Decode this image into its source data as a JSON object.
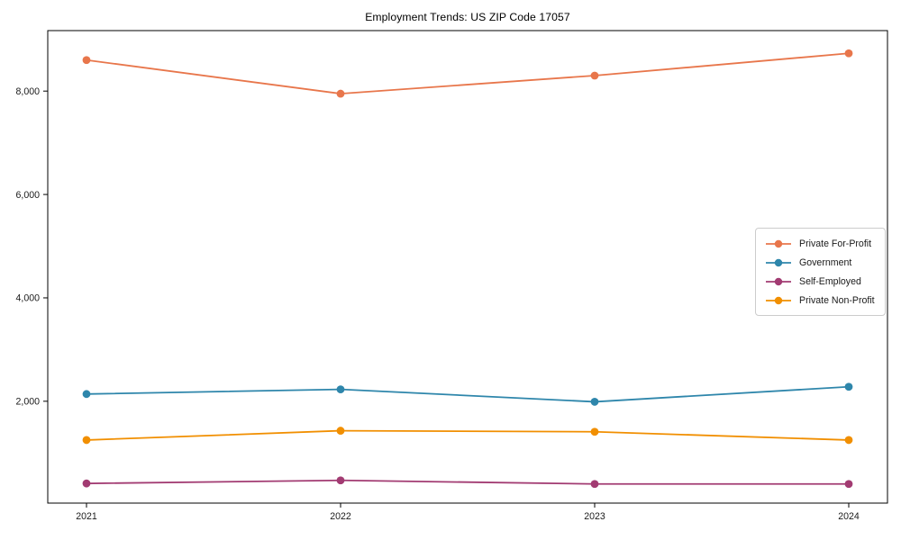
{
  "chart_data": {
    "type": "line",
    "title": "Employment Trends: US ZIP Code 17057",
    "categories": [
      "2021",
      "2022",
      "2023",
      "2024"
    ],
    "series": [
      {
        "name": "Private For-Profit",
        "color": "#E8764B",
        "values": [
          8600,
          7950,
          8300,
          8730
        ]
      },
      {
        "name": "Government",
        "color": "#2E86AB",
        "values": [
          2140,
          2230,
          1990,
          2280
        ]
      },
      {
        "name": "Self-Employed",
        "color": "#A23B72",
        "values": [
          410,
          470,
          400,
          400
        ]
      },
      {
        "name": "Private Non-Profit",
        "color": "#F18F01",
        "values": [
          1250,
          1430,
          1410,
          1250
        ]
      }
    ],
    "xlabel": "",
    "ylabel": "",
    "ylim": [
      30,
      9170
    ],
    "yticks": [
      2000,
      4000,
      6000,
      8000
    ],
    "ytick_labels": [
      "2,000",
      "4,000",
      "6,000",
      "8,000"
    ],
    "grid": false,
    "legend_position": "center right",
    "marker": "circle",
    "axis_color": "#000000",
    "tick_label_color": "#1a1a1a",
    "background": "#ffffff"
  }
}
